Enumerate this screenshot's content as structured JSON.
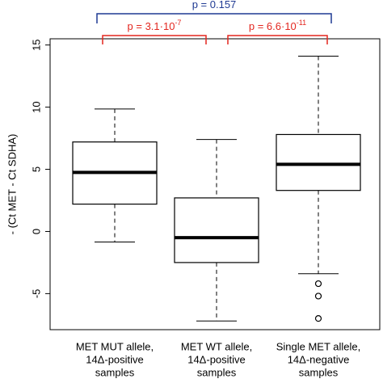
{
  "chart_data": {
    "type": "box",
    "y_label": "- (Ct MET - Ct SDHA)",
    "categories": [
      [
        "MET MUT allele,",
        "14Δ-positive",
        "samples"
      ],
      [
        "MET WT allele,",
        "14Δ-positive",
        "samples"
      ],
      [
        "Single MET allele,",
        "14Δ-negative",
        "samples"
      ]
    ],
    "boxes": [
      {
        "whislo": -0.85,
        "q1": 2.2,
        "med": 4.75,
        "q3": 7.2,
        "whishi": 9.85,
        "fliers": []
      },
      {
        "whislo": -7.2,
        "q1": -2.5,
        "med": -0.5,
        "q3": 2.7,
        "whishi": 7.4,
        "fliers": []
      },
      {
        "whislo": -3.4,
        "q1": 3.3,
        "med": 5.4,
        "q3": 7.8,
        "whishi": 14.1,
        "fliers": [
          -4.2,
          -5.2,
          -7.0
        ]
      }
    ],
    "ylim": [
      -7.9,
      15.5
    ],
    "yticks": [
      -5,
      0,
      5,
      10,
      15
    ],
    "annotations": [
      {
        "text": "p = 0.157",
        "from": 0,
        "to": 2,
        "color": "#1f3a93"
      },
      {
        "text": "p = 3.1·10",
        "superscript": "-7",
        "from": 0,
        "to": 1,
        "color": "#e3261f"
      },
      {
        "text": "p = 6.6·10",
        "superscript": "-11",
        "from": 1,
        "to": 2,
        "color": "#e3261f"
      }
    ]
  }
}
